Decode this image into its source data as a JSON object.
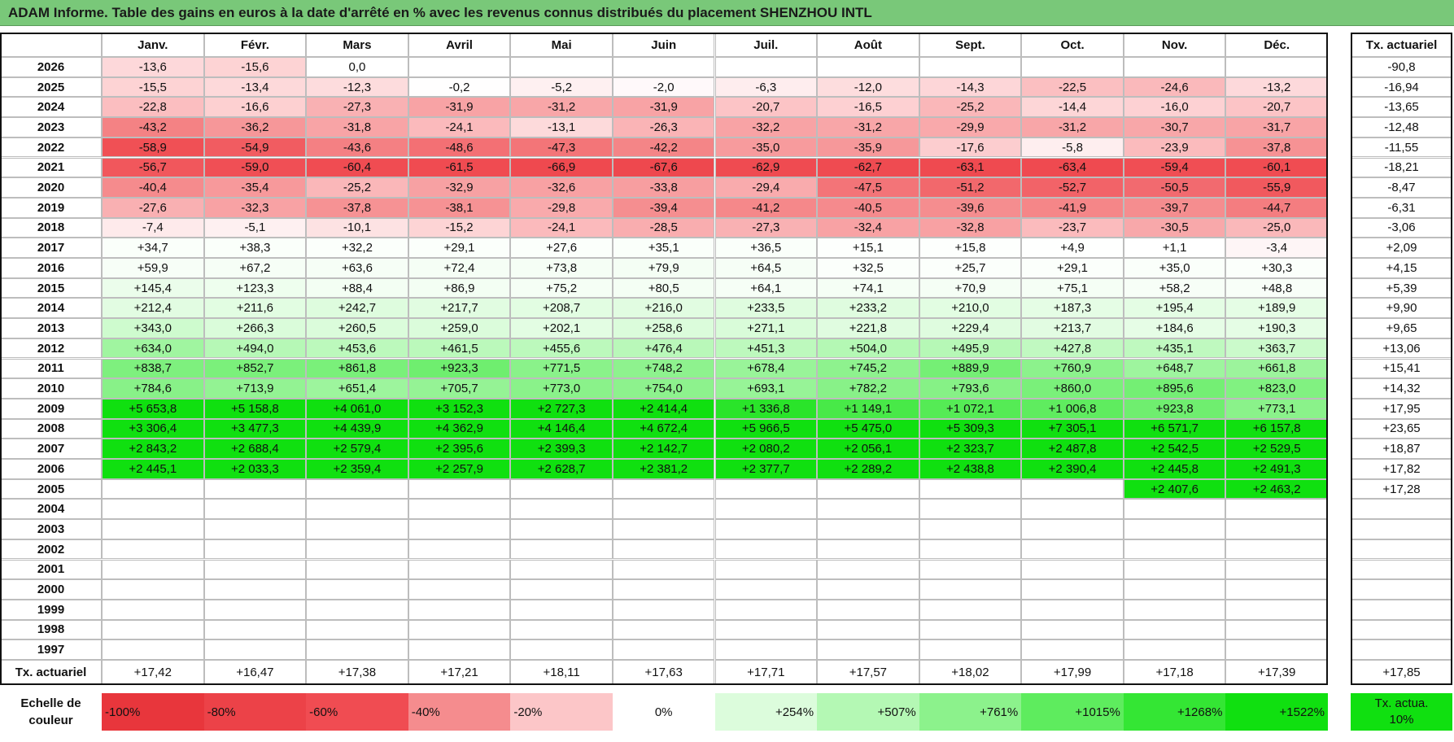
{
  "header": {
    "title": "ADAM Informe. Table des gains en euros à la date d'arrêté en % avec les revenus connus distribués du placement SHENZHOU INTL"
  },
  "table": {
    "columns": [
      "Janv.",
      "Févr.",
      "Mars",
      "Avril",
      "Mai",
      "Juin",
      "Juil.",
      "Août",
      "Sept.",
      "Oct.",
      "Nov.",
      "Déc."
    ],
    "total_header": "Tx. actuariel",
    "rows": [
      {
        "year": "2026",
        "cells": [
          "-13,6",
          "-15,6",
          "0,0",
          null,
          null,
          null,
          null,
          null,
          null,
          null,
          null,
          null
        ],
        "total": "-90,8"
      },
      {
        "year": "2025",
        "cells": [
          "-15,5",
          "-13,4",
          "-12,3",
          "-0,2",
          "-5,2",
          "-2,0",
          "-6,3",
          "-12,0",
          "-14,3",
          "-22,5",
          "-24,6",
          "-13,2"
        ],
        "total": "-16,94"
      },
      {
        "year": "2024",
        "cells": [
          "-22,8",
          "-16,6",
          "-27,3",
          "-31,9",
          "-31,2",
          "-31,9",
          "-20,7",
          "-16,5",
          "-25,2",
          "-14,4",
          "-16,0",
          "-20,7"
        ],
        "total": "-13,65"
      },
      {
        "year": "2023",
        "cells": [
          "-43,2",
          "-36,2",
          "-31,8",
          "-24,1",
          "-13,1",
          "-26,3",
          "-32,2",
          "-31,2",
          "-29,9",
          "-31,2",
          "-30,7",
          "-31,7"
        ],
        "total": "-12,48"
      },
      {
        "year": "2022",
        "cells": [
          "-58,9",
          "-54,9",
          "-43,6",
          "-48,6",
          "-47,3",
          "-42,2",
          "-35,0",
          "-35,9",
          "-17,6",
          "-5,8",
          "-23,9",
          "-37,8"
        ],
        "total": "-11,55"
      },
      {
        "year": "2021",
        "cells": [
          "-56,7",
          "-59,0",
          "-60,4",
          "-61,5",
          "-66,9",
          "-67,6",
          "-62,9",
          "-62,7",
          "-63,1",
          "-63,4",
          "-59,4",
          "-60,1"
        ],
        "total": "-18,21"
      },
      {
        "year": "2020",
        "cells": [
          "-40,4",
          "-35,4",
          "-25,2",
          "-32,9",
          "-32,6",
          "-33,8",
          "-29,4",
          "-47,5",
          "-51,2",
          "-52,7",
          "-50,5",
          "-55,9"
        ],
        "total": "-8,47"
      },
      {
        "year": "2019",
        "cells": [
          "-27,6",
          "-32,3",
          "-37,8",
          "-38,1",
          "-29,8",
          "-39,4",
          "-41,2",
          "-40,5",
          "-39,6",
          "-41,9",
          "-39,7",
          "-44,7"
        ],
        "total": "-6,31"
      },
      {
        "year": "2018",
        "cells": [
          "-7,4",
          "-5,1",
          "-10,1",
          "-15,2",
          "-24,1",
          "-28,5",
          "-27,3",
          "-32,4",
          "-32,8",
          "-23,7",
          "-30,5",
          "-25,0"
        ],
        "total": "-3,06"
      },
      {
        "year": "2017",
        "cells": [
          "+34,7",
          "+38,3",
          "+32,2",
          "+29,1",
          "+27,6",
          "+35,1",
          "+36,5",
          "+15,1",
          "+15,8",
          "+4,9",
          "+1,1",
          "-3,4"
        ],
        "total": "+2,09"
      },
      {
        "year": "2016",
        "cells": [
          "+59,9",
          "+67,2",
          "+63,6",
          "+72,4",
          "+73,8",
          "+79,9",
          "+64,5",
          "+32,5",
          "+25,7",
          "+29,1",
          "+35,0",
          "+30,3"
        ],
        "total": "+4,15"
      },
      {
        "year": "2015",
        "cells": [
          "+145,4",
          "+123,3",
          "+88,4",
          "+86,9",
          "+75,2",
          "+80,5",
          "+64,1",
          "+74,1",
          "+70,9",
          "+75,1",
          "+58,2",
          "+48,8"
        ],
        "total": "+5,39"
      },
      {
        "year": "2014",
        "cells": [
          "+212,4",
          "+211,6",
          "+242,7",
          "+217,7",
          "+208,7",
          "+216,0",
          "+233,5",
          "+233,2",
          "+210,0",
          "+187,3",
          "+195,4",
          "+189,9"
        ],
        "total": "+9,90"
      },
      {
        "year": "2013",
        "cells": [
          "+343,0",
          "+266,3",
          "+260,5",
          "+259,0",
          "+202,1",
          "+258,6",
          "+271,1",
          "+221,8",
          "+229,4",
          "+213,7",
          "+184,6",
          "+190,3"
        ],
        "total": "+9,65"
      },
      {
        "year": "2012",
        "cells": [
          "+634,0",
          "+494,0",
          "+453,6",
          "+461,5",
          "+455,6",
          "+476,4",
          "+451,3",
          "+504,0",
          "+495,9",
          "+427,8",
          "+435,1",
          "+363,7"
        ],
        "total": "+13,06"
      },
      {
        "year": "2011",
        "cells": [
          "+838,7",
          "+852,7",
          "+861,8",
          "+923,3",
          "+771,5",
          "+748,2",
          "+678,4",
          "+745,2",
          "+889,9",
          "+760,9",
          "+648,7",
          "+661,8"
        ],
        "total": "+15,41"
      },
      {
        "year": "2010",
        "cells": [
          "+784,6",
          "+713,9",
          "+651,4",
          "+705,7",
          "+773,0",
          "+754,0",
          "+693,1",
          "+782,2",
          "+793,6",
          "+860,0",
          "+895,6",
          "+823,0"
        ],
        "total": "+14,32"
      },
      {
        "year": "2009",
        "cells": [
          "+5 653,8",
          "+5 158,8",
          "+4 061,0",
          "+3 152,3",
          "+2 727,3",
          "+2 414,4",
          "+1 336,8",
          "+1 149,1",
          "+1 072,1",
          "+1 006,8",
          "+923,8",
          "+773,1"
        ],
        "total": "+17,95"
      },
      {
        "year": "2008",
        "cells": [
          "+3 306,4",
          "+3 477,3",
          "+4 439,9",
          "+4 362,9",
          "+4 146,4",
          "+4 672,4",
          "+5 966,5",
          "+5 475,0",
          "+5 309,3",
          "+7 305,1",
          "+6 571,7",
          "+6 157,8"
        ],
        "total": "+23,65"
      },
      {
        "year": "2007",
        "cells": [
          "+2 843,2",
          "+2 688,4",
          "+2 579,4",
          "+2 395,6",
          "+2 399,3",
          "+2 142,7",
          "+2 080,2",
          "+2 056,1",
          "+2 323,7",
          "+2 487,8",
          "+2 542,5",
          "+2 529,5"
        ],
        "total": "+18,87"
      },
      {
        "year": "2006",
        "cells": [
          "+2 445,1",
          "+2 033,3",
          "+2 359,4",
          "+2 257,9",
          "+2 628,7",
          "+2 381,2",
          "+2 377,7",
          "+2 289,2",
          "+2 438,8",
          "+2 390,4",
          "+2 445,8",
          "+2 491,3"
        ],
        "total": "+17,82"
      },
      {
        "year": "2005",
        "cells": [
          null,
          null,
          null,
          null,
          null,
          null,
          null,
          null,
          null,
          null,
          "+2 407,6",
          "+2 463,2"
        ],
        "total": "+17,28"
      },
      {
        "year": "2004",
        "cells": [
          null,
          null,
          null,
          null,
          null,
          null,
          null,
          null,
          null,
          null,
          null,
          null
        ],
        "total": null
      },
      {
        "year": "2003",
        "cells": [
          null,
          null,
          null,
          null,
          null,
          null,
          null,
          null,
          null,
          null,
          null,
          null
        ],
        "total": null
      },
      {
        "year": "2002",
        "cells": [
          null,
          null,
          null,
          null,
          null,
          null,
          null,
          null,
          null,
          null,
          null,
          null
        ],
        "total": null
      },
      {
        "year": "2001",
        "cells": [
          null,
          null,
          null,
          null,
          null,
          null,
          null,
          null,
          null,
          null,
          null,
          null
        ],
        "total": null
      },
      {
        "year": "2000",
        "cells": [
          null,
          null,
          null,
          null,
          null,
          null,
          null,
          null,
          null,
          null,
          null,
          null
        ],
        "total": null
      },
      {
        "year": "1999",
        "cells": [
          null,
          null,
          null,
          null,
          null,
          null,
          null,
          null,
          null,
          null,
          null,
          null
        ],
        "total": null
      },
      {
        "year": "1998",
        "cells": [
          null,
          null,
          null,
          null,
          null,
          null,
          null,
          null,
          null,
          null,
          null,
          null
        ],
        "total": null
      },
      {
        "year": "1997",
        "cells": [
          null,
          null,
          null,
          null,
          null,
          null,
          null,
          null,
          null,
          null,
          null,
          null
        ],
        "total": null
      }
    ],
    "footer": {
      "label": "Tx. actuariel",
      "cells": [
        "+17,42",
        "+16,47",
        "+17,38",
        "+17,21",
        "+18,11",
        "+17,63",
        "+17,71",
        "+17,57",
        "+18,02",
        "+17,99",
        "+17,18",
        "+17,39"
      ],
      "total": "+17,85"
    }
  },
  "legend": {
    "label": "Echelle de couleur",
    "stops": [
      {
        "label": "-100%",
        "color": "#e8363c"
      },
      {
        "label": "-80%",
        "color": "#ec4248"
      },
      {
        "label": "-60%",
        "color": "#f04c52"
      },
      {
        "label": "-40%",
        "color": "#f58c8e"
      },
      {
        "label": "-20%",
        "color": "#fcc6c8"
      },
      {
        "label": "0%",
        "color": "#ffffff"
      },
      {
        "label": "+254%",
        "color": "#dcfcdc"
      },
      {
        "label": "+507%",
        "color": "#b4f8b4"
      },
      {
        "label": "+761%",
        "color": "#8cf28c"
      },
      {
        "label": "+1015%",
        "color": "#5eec5e"
      },
      {
        "label": "+1268%",
        "color": "#34e634"
      },
      {
        "label": "+1522%",
        "color": "#10e010"
      }
    ],
    "total": {
      "label": "Tx. actua. 10%",
      "color": "#10e010"
    }
  }
}
